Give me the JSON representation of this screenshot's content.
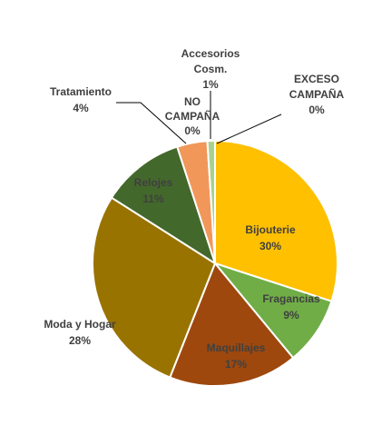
{
  "chart_data": {
    "type": "pie",
    "title": "",
    "legend": "none",
    "slices": [
      {
        "name": "Bijouterie",
        "value": 30,
        "value_label": "30%",
        "color": "#FFC000"
      },
      {
        "name": "Fragancias",
        "value": 9,
        "value_label": "9%",
        "color": "#70AD47"
      },
      {
        "name": "Maquillajes",
        "value": 17,
        "value_label": "17%",
        "color": "#9E480E"
      },
      {
        "name": "Moda y Hogar",
        "value": 28,
        "value_label": "28%",
        "color": "#997300"
      },
      {
        "name": "Relojes",
        "value": 11,
        "value_label": "11%",
        "color": "#43682B"
      },
      {
        "name": "Tratamiento",
        "value": 4,
        "value_label": "4%",
        "color": "#F1975A"
      },
      {
        "name": "Accesorios Cosm.",
        "value": 1,
        "value_label": "1%",
        "color": "#A9D18E"
      },
      {
        "name": "NO CAMPAÑA",
        "value": 0,
        "value_label": "0%",
        "color": "#264478"
      },
      {
        "name": "EXCESO CAMPAÑA",
        "value": 0,
        "value_label": "0%",
        "color": "#636363"
      }
    ]
  }
}
